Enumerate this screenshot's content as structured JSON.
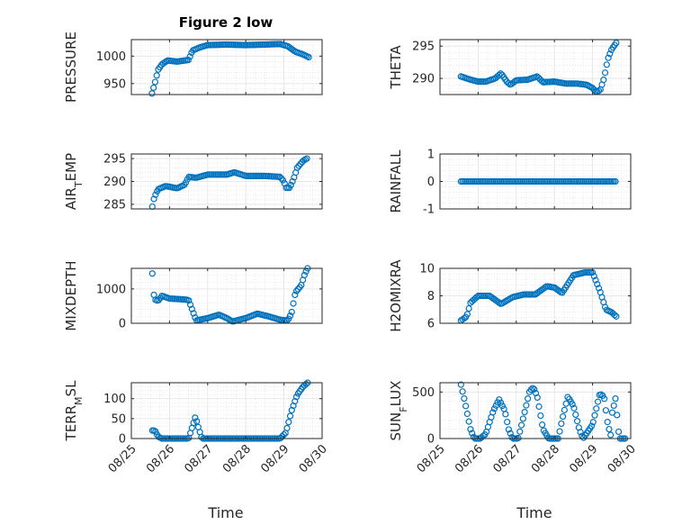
{
  "figure": {
    "title": "Figure 2 low",
    "xlabel": "Time",
    "time_ticks": [
      "08/25",
      "08/26",
      "08/27",
      "08/28",
      "08/29",
      "08/30"
    ],
    "marker_color": "#0072BD",
    "grid": true
  },
  "chart_data": [
    {
      "type": "scatter",
      "ylabel": "PRESSURE",
      "xlim": [
        "08/25",
        "08/30"
      ],
      "ylim": [
        930,
        1030
      ],
      "yticks": [
        950,
        1000
      ],
      "y_at_day": [
        [
          0.54,
          932
        ],
        [
          0.62,
          952
        ],
        [
          0.7,
          975
        ],
        [
          0.8,
          985
        ],
        [
          0.95,
          992
        ],
        [
          1.2,
          990
        ],
        [
          1.5,
          993
        ],
        [
          1.6,
          1010
        ],
        [
          1.8,
          1016
        ],
        [
          2.0,
          1020
        ],
        [
          2.5,
          1021
        ],
        [
          3.0,
          1020
        ],
        [
          3.5,
          1021
        ],
        [
          3.9,
          1022
        ],
        [
          4.1,
          1018
        ],
        [
          4.3,
          1008
        ],
        [
          4.5,
          1003
        ],
        [
          4.65,
          998
        ]
      ]
    },
    {
      "type": "scatter",
      "ylabel": "THETA",
      "xlim": [
        "08/25",
        "08/30"
      ],
      "ylim": [
        287.5,
        296
      ],
      "yticks": [
        290,
        295
      ],
      "y_at_day": [
        [
          0.55,
          290.3
        ],
        [
          0.8,
          289.8
        ],
        [
          1.0,
          289.5
        ],
        [
          1.2,
          289.5
        ],
        [
          1.45,
          290.0
        ],
        [
          1.6,
          290.8
        ],
        [
          1.75,
          289.5
        ],
        [
          1.85,
          289.0
        ],
        [
          2.0,
          289.7
        ],
        [
          2.3,
          289.8
        ],
        [
          2.55,
          290.3
        ],
        [
          2.7,
          289.4
        ],
        [
          3.0,
          289.5
        ],
        [
          3.3,
          289.2
        ],
        [
          3.6,
          289.2
        ],
        [
          3.85,
          289.0
        ],
        [
          4.0,
          288.5
        ],
        [
          4.1,
          287.9
        ],
        [
          4.2,
          288.2
        ],
        [
          4.3,
          290.0
        ],
        [
          4.4,
          293.0
        ],
        [
          4.5,
          294.5
        ],
        [
          4.62,
          295.5
        ]
      ]
    },
    {
      "type": "scatter",
      "ylabel": "AIR_TEMP",
      "xlim": [
        "08/25",
        "08/30"
      ],
      "ylim": [
        284,
        296
      ],
      "yticks": [
        285,
        290,
        295
      ],
      "y_at_day": [
        [
          0.55,
          284.5
        ],
        [
          0.6,
          286.5
        ],
        [
          0.7,
          288.3
        ],
        [
          0.9,
          289.0
        ],
        [
          1.2,
          288.5
        ],
        [
          1.4,
          289.3
        ],
        [
          1.5,
          291.0
        ],
        [
          1.7,
          290.8
        ],
        [
          2.0,
          291.5
        ],
        [
          2.5,
          291.5
        ],
        [
          2.7,
          292.0
        ],
        [
          3.0,
          291.2
        ],
        [
          3.5,
          291.2
        ],
        [
          3.9,
          291.0
        ],
        [
          4.0,
          290.0
        ],
        [
          4.05,
          288.6
        ],
        [
          4.15,
          288.6
        ],
        [
          4.25,
          290.5
        ],
        [
          4.35,
          293.0
        ],
        [
          4.5,
          294.5
        ],
        [
          4.6,
          295.0
        ]
      ]
    },
    {
      "type": "scatter",
      "ylabel": "RAINFALL",
      "xlim": [
        "08/25",
        "08/30"
      ],
      "ylim": [
        -1,
        1
      ],
      "yticks": [
        -1,
        0,
        1
      ],
      "y_at_day": [
        [
          0.55,
          0
        ],
        [
          4.6,
          0
        ]
      ]
    },
    {
      "type": "scatter",
      "ylabel": "MIXDEPTH",
      "xlim": [
        "08/25",
        "08/30"
      ],
      "ylim": [
        0,
        1600
      ],
      "yticks": [
        0,
        1000
      ],
      "y_at_day": [
        [
          0.55,
          1450
        ],
        [
          0.6,
          700
        ],
        [
          0.7,
          650
        ],
        [
          0.8,
          800
        ],
        [
          1.0,
          720
        ],
        [
          1.3,
          700
        ],
        [
          1.5,
          680
        ],
        [
          1.6,
          380
        ],
        [
          1.7,
          80
        ],
        [
          2.0,
          150
        ],
        [
          2.3,
          250
        ],
        [
          2.5,
          150
        ],
        [
          2.65,
          50
        ],
        [
          3.0,
          150
        ],
        [
          3.3,
          280
        ],
        [
          3.6,
          200
        ],
        [
          3.9,
          100
        ],
        [
          4.1,
          80
        ],
        [
          4.2,
          300
        ],
        [
          4.3,
          900
        ],
        [
          4.45,
          1100
        ],
        [
          4.55,
          1450
        ],
        [
          4.62,
          1600
        ]
      ]
    },
    {
      "type": "scatter",
      "ylabel": "H2OMIXRA",
      "xlim": [
        "08/25",
        "08/30"
      ],
      "ylim": [
        6,
        10
      ],
      "yticks": [
        6,
        8,
        10
      ],
      "y_at_day": [
        [
          0.55,
          6.2
        ],
        [
          0.7,
          6.5
        ],
        [
          0.8,
          7.5
        ],
        [
          1.0,
          8.0
        ],
        [
          1.3,
          8.0
        ],
        [
          1.6,
          7.4
        ],
        [
          1.9,
          7.9
        ],
        [
          2.2,
          8.1
        ],
        [
          2.5,
          8.1
        ],
        [
          2.8,
          8.7
        ],
        [
          3.0,
          8.6
        ],
        [
          3.2,
          8.2
        ],
        [
          3.5,
          9.5
        ],
        [
          3.8,
          9.7
        ],
        [
          4.0,
          9.7
        ],
        [
          4.2,
          8.3
        ],
        [
          4.35,
          7.0
        ],
        [
          4.5,
          6.8
        ],
        [
          4.62,
          6.5
        ]
      ]
    },
    {
      "type": "scatter",
      "ylabel": "TERR_MSL",
      "xlim": [
        "08/25",
        "08/30"
      ],
      "ylim": [
        0,
        140
      ],
      "yticks": [
        0,
        50,
        100
      ],
      "y_at_day": [
        [
          0.55,
          20
        ],
        [
          0.62,
          20
        ],
        [
          0.7,
          5
        ],
        [
          0.8,
          0
        ],
        [
          1.5,
          0
        ],
        [
          1.6,
          30
        ],
        [
          1.68,
          55
        ],
        [
          1.75,
          30
        ],
        [
          1.85,
          0
        ],
        [
          2.5,
          0
        ],
        [
          3.0,
          0
        ],
        [
          3.5,
          0
        ],
        [
          3.9,
          0
        ],
        [
          4.05,
          15
        ],
        [
          4.2,
          70
        ],
        [
          4.35,
          110
        ],
        [
          4.5,
          130
        ],
        [
          4.62,
          140
        ]
      ]
    },
    {
      "type": "scatter",
      "ylabel": "SUN_FLUX",
      "xlim": [
        "08/25",
        "08/30"
      ],
      "ylim": [
        0,
        600
      ],
      "yticks": [
        0,
        500
      ],
      "y_at_day": [
        [
          0.55,
          580
        ],
        [
          0.65,
          400
        ],
        [
          0.8,
          100
        ],
        [
          0.9,
          0
        ],
        [
          1.05,
          0
        ],
        [
          1.2,
          50
        ],
        [
          1.4,
          300
        ],
        [
          1.55,
          420
        ],
        [
          1.7,
          300
        ],
        [
          1.8,
          100
        ],
        [
          1.9,
          0
        ],
        [
          2.05,
          0
        ],
        [
          2.2,
          250
        ],
        [
          2.35,
          510
        ],
        [
          2.45,
          550
        ],
        [
          2.55,
          450
        ],
        [
          2.7,
          100
        ],
        [
          2.85,
          0
        ],
        [
          3.1,
          0
        ],
        [
          3.2,
          200
        ],
        [
          3.35,
          450
        ],
        [
          3.5,
          350
        ],
        [
          3.65,
          100
        ],
        [
          3.75,
          0
        ],
        [
          4.0,
          150
        ],
        [
          4.2,
          500
        ],
        [
          4.3,
          450
        ],
        [
          4.4,
          150
        ],
        [
          4.5,
          0
        ],
        [
          4.7,
          0
        ],
        [
          4.85,
          0
        ],
        [
          4.2,
          480
        ],
        [
          4.5,
          250
        ],
        [
          4.6,
          430
        ]
      ]
    }
  ]
}
